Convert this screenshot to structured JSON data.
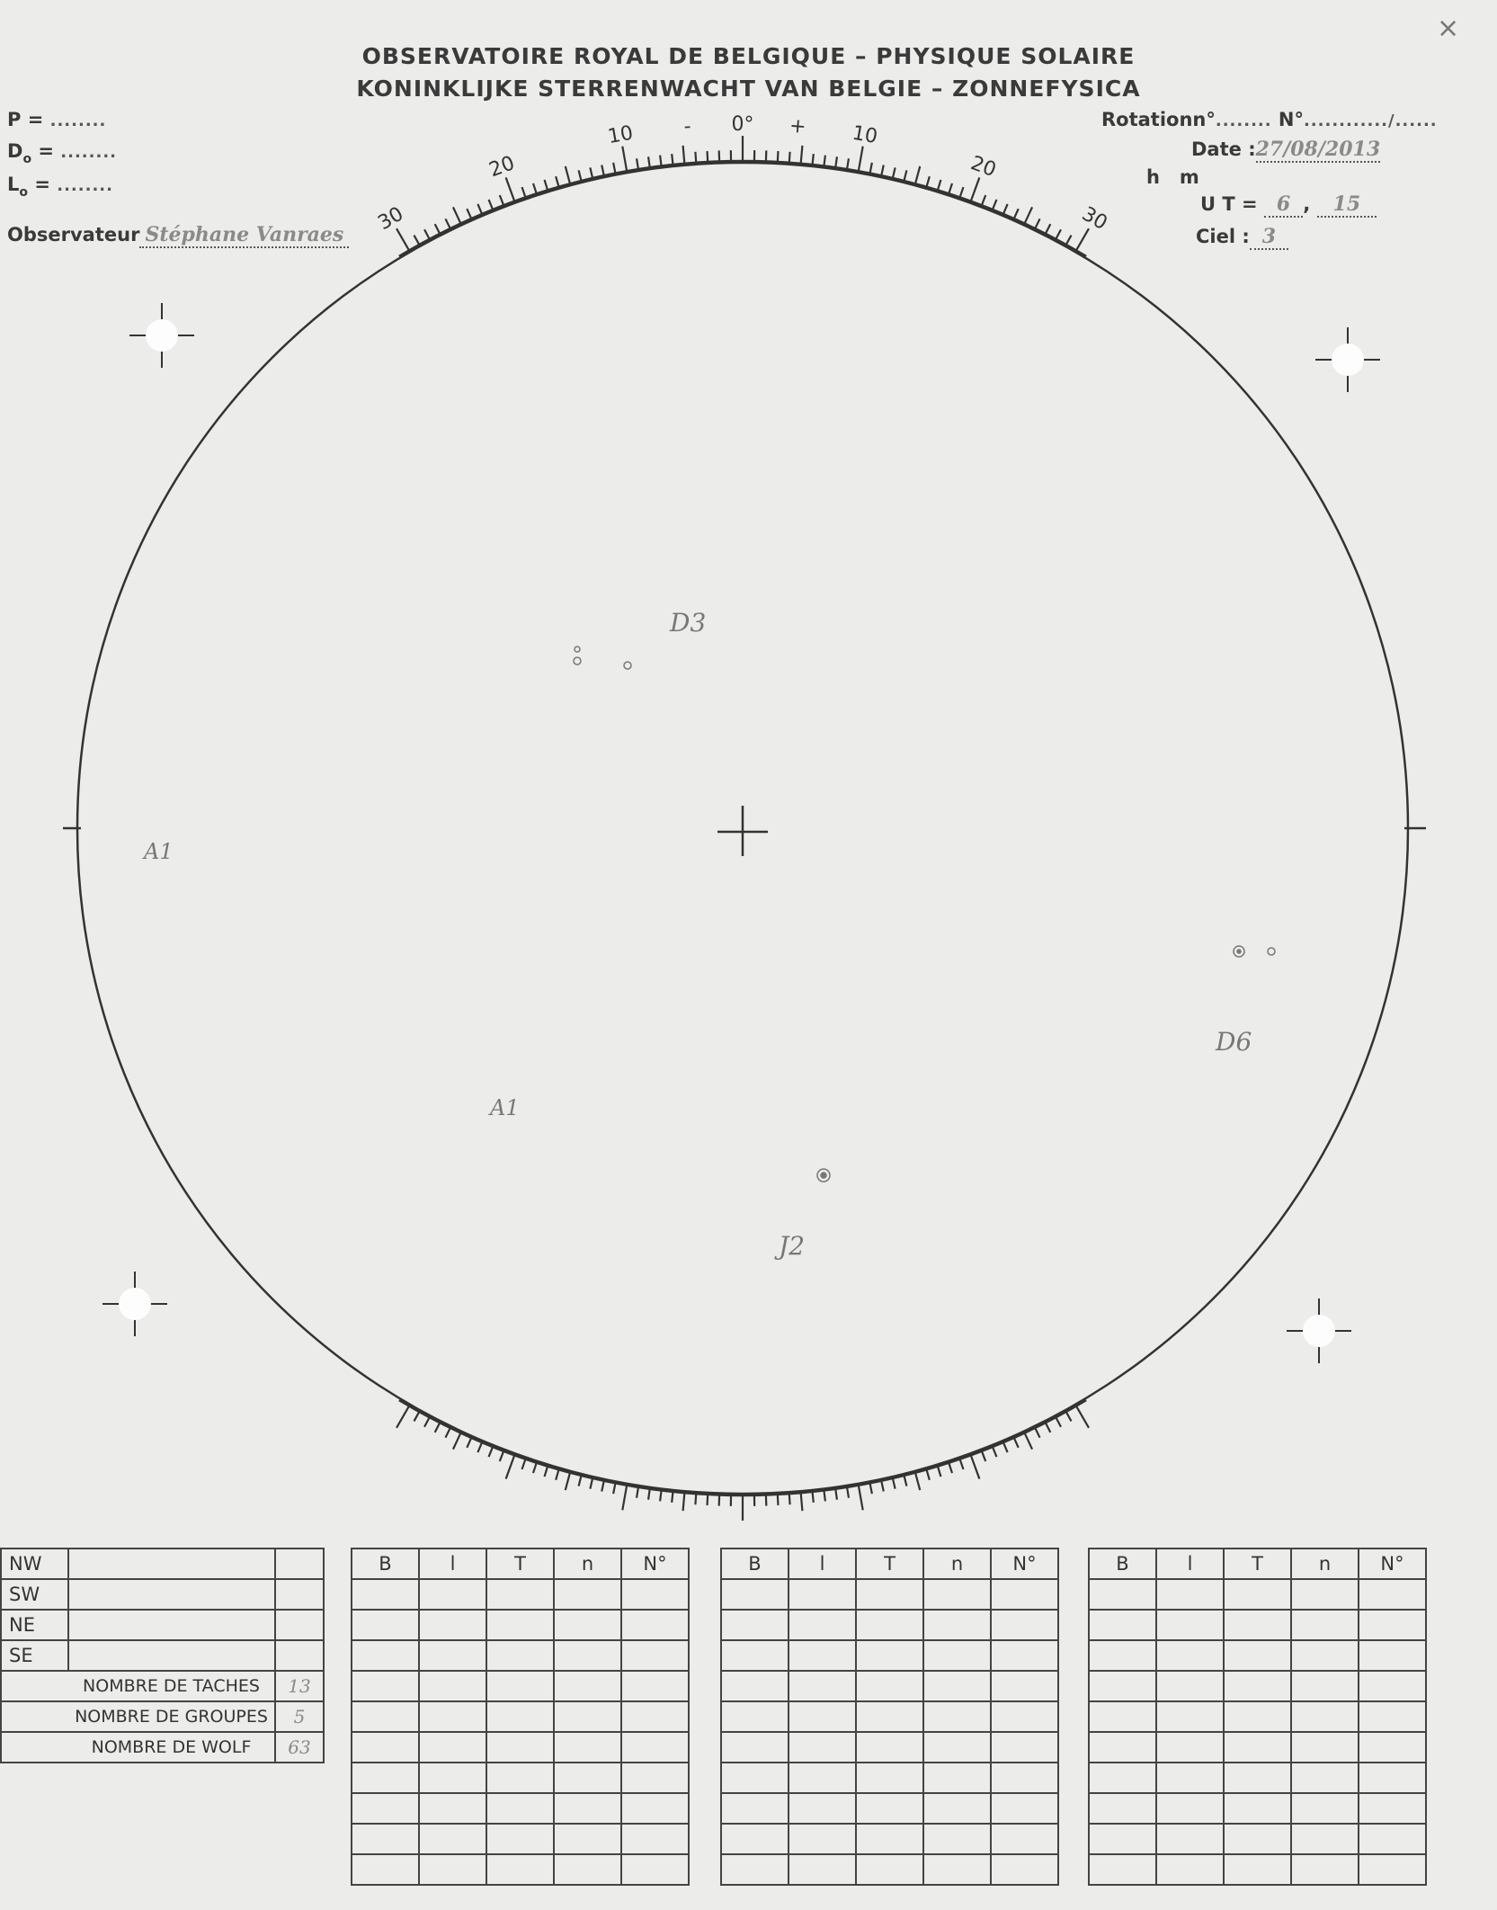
{
  "header": {
    "title_fr": "OBSERVATOIRE ROYAL DE  BELGIQUE – PHYSIQUE SOLAIRE",
    "title_nl": "KONINKLIJKE  STERRENWACHT VAN BELGIE – ZONNEFYSICA",
    "close_mark": "×"
  },
  "left_fields": {
    "p_label": "P =",
    "p_value": "........",
    "d0_label": "D",
    "d0_sub": "o",
    "d0_eq": "=",
    "d0_value": "........",
    "l0_label": "L",
    "l0_sub": "o",
    "l0_eq": "=",
    "l0_value": "........",
    "observer_label": "Observateur",
    "observer_value": "Stéphane Vanraes"
  },
  "right_fields": {
    "rotation_label": "Rotationn°",
    "rotation_value": "........",
    "number_label": "N°",
    "number_value": "............/......",
    "date_label": "Date :",
    "date_value": "27/08/2013",
    "hm_label": "h   m",
    "ut_label": "U T =",
    "ut_hours": "6",
    "ut_minutes": "15",
    "sky_label": "Ciel :",
    "sky_value": "3"
  },
  "scale": {
    "top_labels": [
      "30",
      "20",
      "10",
      "-",
      "0°",
      "+",
      "10",
      "20",
      "30"
    ],
    "range_degrees": [
      -30,
      30
    ]
  },
  "annotations": [
    {
      "label": "D3"
    },
    {
      "label": "A1"
    },
    {
      "label": "A1"
    },
    {
      "label": "D6"
    },
    {
      "label": "J2"
    }
  ],
  "summary_table": {
    "quadrants": [
      "NW",
      "SW",
      "NE",
      "SE"
    ],
    "rows": [
      {
        "label": "NOMBRE DE TACHES",
        "value": "13"
      },
      {
        "label": "NOMBRE DE GROUPES",
        "value": "5"
      },
      {
        "label": "NOMBRE DE WOLF",
        "value": "63"
      }
    ]
  },
  "group_tables": {
    "headers": [
      "B",
      "l",
      "T",
      "n",
      "N°"
    ],
    "count": 3,
    "empty_rows": 10
  },
  "colors": {
    "ink": "#3a3a3a",
    "pencil": "#8a8a8a",
    "paper": "#ececea"
  }
}
